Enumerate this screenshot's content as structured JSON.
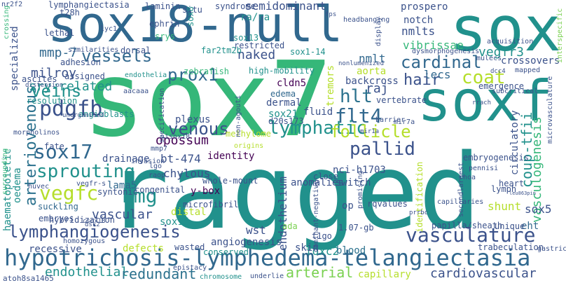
{
  "words": {
    "ragged": "ragged",
    "sox7": "sox7",
    "sox18_null": "sox18-null",
    "sox": "sox",
    "soxf": "soxf",
    "hypotrichosis": "hypotrichosis-lymphedema-telangiectasia",
    "lymphangiogenesis": "lymphangiogenesis",
    "vasculature": "vasculature",
    "arteriovenous": "arteriovenous",
    "pdgfb": "pdgfb",
    "sox17": "sox17",
    "sprouting": "sprouting",
    "vegfc": "vegfc",
    "hmg": "hmg",
    "veins": "veins",
    "vessels": "vessels",
    "prox1": "prox1",
    "venous": "venous",
    "lymphatic": "lymphatic",
    "pallid": "pallid",
    "flt4": "flt4",
    "hlt": "hlt",
    "follicle": "follicle",
    "cardinal": "cardinal",
    "hair": "hair",
    "coat": "coat",
    "coup_tfii": "coup-tfii",
    "vasculogenesis": "vasculogenesis",
    "endothelial": "endothelial",
    "redundant": "redundant",
    "arterial": "arterial",
    "cardiovascular": "cardiovascular",
    "recessive": "recessive",
    "foxc2": "foxc2",
    "vascular": "vascular",
    "endothelium": "endothelium",
    "opossum": "opossum",
    "sry_related": "sry-related",
    "milroy": "milroy",
    "mmp_7": "mmp-7",
    "naked": "naked",
    "cldn5": "cldn5",
    "sox21": "sox21",
    "raj": "raj",
    "lecs": "lecs",
    "vegfr3": "vegfr3",
    "crossovers": "crossovers",
    "nmlts": "nmlts",
    "nmlt": "nmlt",
    "aorta": "aorta",
    "backcross": "backcross",
    "vibrissae": "vibrissae",
    "shunt": "shunt",
    "sox5": "sox5",
    "eht": "eht",
    "bt_474": "bt-474",
    "identity": "identity",
    "drainage": "drainage",
    "chylous": "chylous",
    "lama5": "lama5",
    "y_box": "y-box",
    "wst": "wst",
    "distal": "distal",
    "sox15": "sox15",
    "angiogenesis": "angiogenesis",
    "defects": "defects",
    "capillary": "capillary",
    "blood": "blood",
    "skin": "skin",
    "ada": "ada",
    "op": "op",
    "switch": "switch",
    "anomalies": "anomalies",
    "fluid": "fluid",
    "nci_h1703": "nci-h1703",
    "edema": "edema",
    "dermal": "dermal",
    "zebrafish": "zebrafish",
    "high_mobility": "high-mobility",
    "sox1_14": "sox1-14",
    "sox13": "sox13",
    "semidominant": "semidominant",
    "lymphangiectasia": "lymphangiectasia",
    "prospero": "prospero",
    "notch": "notch",
    "specialized": "specialized",
    "oedema": "oedema",
    "haematopoietic": "haematopoietic",
    "embryos": "embryos",
    "suckling": "suckling",
    "circulatory": "circulatory",
    "embryogenesis": "embryogenesis",
    "whole_mount": "whole-mount",
    "hybridization": "hybridization",
    "lymph": "lymph",
    "identification": "identification",
    "emergence": "emergence",
    "tremors": "tremors",
    "heart": "heart",
    "vertebrate": "vertebrate",
    "syndrome": "syndrome",
    "laminin": "laminin",
    "situ": "situ",
    "t28h": "t28h",
    "ephrin": "ephrin",
    "srys": "srys",
    "lethal": "lethal",
    "ra_ra": "ra/ra",
    "sox4": "sox4",
    "bx471": "bx471",
    "sox8": "sox8",
    "far2tm2b": "far2tm2b",
    "restricted": "restricted",
    "adhesion": "adhesion",
    "assigned": "assigned",
    "ascites": "ascites",
    "resolution": "resolution",
    "endothelia": "endothelia",
    "dorsal": "dorsal",
    "angioblasts": "angioblasts",
    "fate": "fate",
    "plexus": "plexus",
    "methylome": "methylome",
    "d20s173": "d20s173",
    "sisox18": "sisox18",
    "mmp7": "mmp7",
    "congenital": "congenital",
    "syntonic": "syntonic",
    "microfibril": "microfibril",
    "wasted": "wasted",
    "homozygous": "homozygous",
    "conserved": "conserved",
    "chromosome": "chromosome",
    "underlie": "underlie",
    "atoh8sa1465": "atoh8sa1465",
    "t1go": "t1go",
    "1_07_gb": "1.07-gb",
    "rqvalues": "rqvalues",
    "papilla_sheath": "papilla/sheath",
    "trabeculation": "trabeculation",
    "unique": "unique",
    "gastric": "gastric",
    "microvasculature": "microvasculature",
    "subcritical": "subcritical",
    "mapped": "mapped",
    "acquisition": "acquisition",
    "mulecs": "mulecs",
    "dysmorphogenesis": "dysmorphogenesis",
    "mir7a": "mir7a",
    "barrier": "barrier",
    "close": "close",
    "promising": "promising",
    "rhoa": "rhoa",
    "pennisi": "pennisi",
    "secondlargest": "secondlargest",
    "capillaries": "capillaries",
    "display": "display",
    "headbanging": "headbanging",
    "interspecific": "interspecific",
    "morpholinos": "morpholinos",
    "invasion": "invasion",
    "nr2f2": "nr2f2",
    "crossing": "crossing",
    "lyc1": "lyc1",
    "huvec": "huvec",
    "raop": "raop",
    "specification": "specification",
    "origins": "origins",
    "epistacy": "epistacy",
    "surrounding": "surrounding",
    "non_agouti": "non-agouti",
    "dominant_negative": "dominant-negative",
    "vegfr_s": "vegfr-s",
    "similarities": "similarities",
    "distension": "distension",
    "unorganised": "unorganised",
    "dcc4": "dcc4",
    "aacaaa": "aacaaa",
    "mir1a": "mir1a",
    "prrbc": "prrbc",
    "nonlumenized": "nonlumenized",
    "fps": "fps",
    "dsk2": "dsk2",
    "lgo": "lgo",
    "csox18": "csox18",
    "rrach": "rrach",
    "t1go_small": "t1go",
    "lex_small": "leu863pin"
  }
}
